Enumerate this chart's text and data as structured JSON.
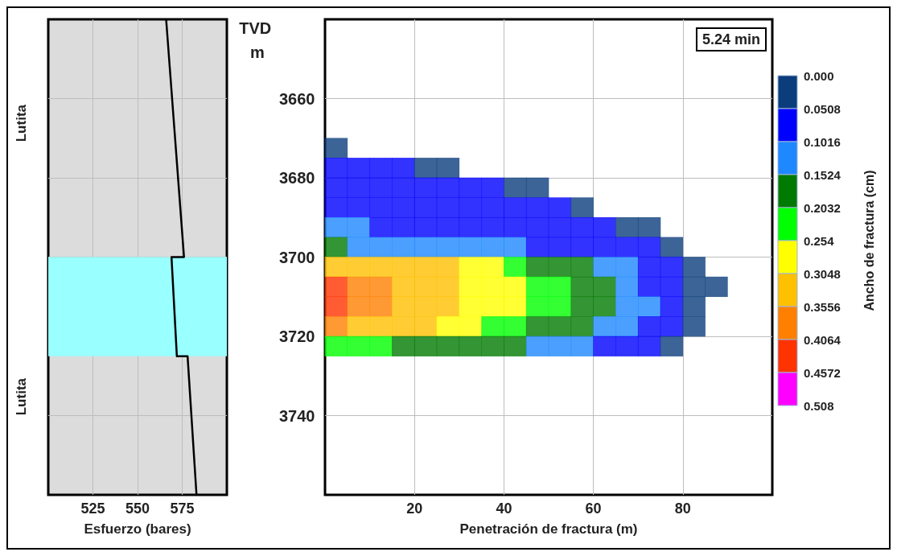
{
  "chart_data": [
    {
      "type": "line",
      "xlabel": "Esfuerzo (bares)",
      "annotations": [
        "Lutita",
        "Lutita"
      ],
      "xlim": [
        500,
        600
      ],
      "xticks": [
        525,
        550,
        575
      ],
      "ylim": [
        3760,
        3640
      ],
      "yticks": [
        3660,
        3680,
        3700,
        3720,
        3740
      ],
      "tick_labels": "x",
      "grid": true,
      "series": [
        {
          "color": "#000000",
          "x": [
            566,
            576,
            569,
            572,
            578,
            583
          ],
          "values": [
            3640,
            3700,
            3700,
            3725,
            3725,
            3760
          ]
        }
      ],
      "bands": [
        {
          "axis": "y",
          "from": 3700,
          "to": 3725,
          "color": "#99ffff"
        }
      ]
    },
    {
      "type": "scatter",
      "marker": "square",
      "xlabel": "Penetración de fractura (m)",
      "ylabel": "TVD m",
      "clabel": "Ancho de fractura (cm)",
      "annotations": [
        "5.24 min"
      ],
      "xlim": [
        0,
        100
      ],
      "xticks": [
        20,
        40,
        60,
        80
      ],
      "ylim": [
        3760,
        3640
      ],
      "yticks": [
        3660,
        3680,
        3700,
        3720,
        3740
      ],
      "grid": true,
      "clim": [
        0,
        0.508
      ],
      "cticks": [
        {
          "value": 0,
          "label": "0.000"
        },
        0.0508,
        0.1016,
        0.1524,
        0.2032,
        0.254,
        0.3048,
        0.3556,
        0.4064,
        0.4572,
        0.508
      ],
      "colors": [
        "#0b3d7c",
        "#0000ff",
        "#1e88ff",
        "#007a00",
        "#00ff00",
        "#ffff00",
        "#ffc000",
        "#ff8000",
        "#ff3300",
        "#ff00ff"
      ],
      "series": [
        {
          "x": [
            2.5,
            2.5,
            7.5,
            12.5,
            17.5,
            22.5,
            27.5,
            2.5,
            7.5,
            12.5,
            17.5,
            22.5,
            27.5,
            32.5,
            37.5,
            42.5,
            47.5,
            2.5,
            7.5,
            12.5,
            17.5,
            22.5,
            27.5,
            32.5,
            37.5,
            42.5,
            47.5,
            52.5,
            57.5,
            2.5,
            7.5,
            12.5,
            17.5,
            22.5,
            27.5,
            32.5,
            37.5,
            42.5,
            47.5,
            52.5,
            57.5,
            62.5,
            67.5,
            72.5,
            2.5,
            7.5,
            12.5,
            17.5,
            22.5,
            27.5,
            32.5,
            37.5,
            42.5,
            47.5,
            52.5,
            57.5,
            62.5,
            67.5,
            72.5,
            77.5,
            2.5,
            7.5,
            12.5,
            17.5,
            22.5,
            27.5,
            32.5,
            37.5,
            42.5,
            47.5,
            52.5,
            57.5,
            62.5,
            67.5,
            72.5,
            77.5,
            82.5,
            2.5,
            7.5,
            12.5,
            17.5,
            22.5,
            27.5,
            32.5,
            37.5,
            42.5,
            47.5,
            52.5,
            57.5,
            62.5,
            67.5,
            72.5,
            77.5,
            82.5,
            87.5,
            2.5,
            7.5,
            12.5,
            17.5,
            22.5,
            27.5,
            32.5,
            37.5,
            42.5,
            47.5,
            52.5,
            57.5,
            62.5,
            67.5,
            72.5,
            77.5,
            82.5,
            2.5,
            7.5,
            12.5,
            17.5,
            22.5,
            27.5,
            32.5,
            37.5,
            42.5,
            47.5,
            52.5,
            57.5,
            62.5,
            67.5,
            72.5,
            77.5,
            82.5,
            2.5,
            7.5,
            12.5,
            17.5,
            22.5,
            27.5,
            32.5,
            37.5,
            42.5,
            47.5,
            52.5,
            57.5,
            62.5,
            67.5,
            72.5,
            77.5
          ],
          "values": [
            3672.5,
            3677.5,
            3677.5,
            3677.5,
            3677.5,
            3677.5,
            3677.5,
            3682.5,
            3682.5,
            3682.5,
            3682.5,
            3682.5,
            3682.5,
            3682.5,
            3682.5,
            3682.5,
            3682.5,
            3687.5,
            3687.5,
            3687.5,
            3687.5,
            3687.5,
            3687.5,
            3687.5,
            3687.5,
            3687.5,
            3687.5,
            3687.5,
            3687.5,
            3692.5,
            3692.5,
            3692.5,
            3692.5,
            3692.5,
            3692.5,
            3692.5,
            3692.5,
            3692.5,
            3692.5,
            3692.5,
            3692.5,
            3692.5,
            3692.5,
            3692.5,
            3697.5,
            3697.5,
            3697.5,
            3697.5,
            3697.5,
            3697.5,
            3697.5,
            3697.5,
            3697.5,
            3697.5,
            3697.5,
            3697.5,
            3697.5,
            3697.5,
            3697.5,
            3697.5,
            3702.5,
            3702.5,
            3702.5,
            3702.5,
            3702.5,
            3702.5,
            3702.5,
            3702.5,
            3702.5,
            3702.5,
            3702.5,
            3702.5,
            3702.5,
            3702.5,
            3702.5,
            3702.5,
            3702.5,
            3707.5,
            3707.5,
            3707.5,
            3707.5,
            3707.5,
            3707.5,
            3707.5,
            3707.5,
            3707.5,
            3707.5,
            3707.5,
            3707.5,
            3707.5,
            3707.5,
            3707.5,
            3707.5,
            3707.5,
            3707.5,
            3712.5,
            3712.5,
            3712.5,
            3712.5,
            3712.5,
            3712.5,
            3712.5,
            3712.5,
            3712.5,
            3712.5,
            3712.5,
            3712.5,
            3712.5,
            3712.5,
            3712.5,
            3712.5,
            3712.5,
            3717.5,
            3717.5,
            3717.5,
            3717.5,
            3717.5,
            3717.5,
            3717.5,
            3717.5,
            3717.5,
            3717.5,
            3717.5,
            3717.5,
            3717.5,
            3717.5,
            3717.5,
            3717.5,
            3717.5,
            3722.5,
            3722.5,
            3722.5,
            3722.5,
            3722.5,
            3722.5,
            3722.5,
            3722.5,
            3722.5,
            3722.5,
            3722.5,
            3722.5,
            3722.5,
            3722.5,
            3722.5,
            3722.5
          ],
          "cvalues": [
            0.0254,
            0.0762,
            0.0762,
            0.0762,
            0.0762,
            0.0254,
            0.0254,
            0.0762,
            0.0762,
            0.0762,
            0.0762,
            0.0762,
            0.0762,
            0.0762,
            0.0762,
            0.0254,
            0.0254,
            0.0762,
            0.0762,
            0.0762,
            0.0762,
            0.0762,
            0.0762,
            0.0762,
            0.0762,
            0.0762,
            0.0762,
            0.0762,
            0.0254,
            0.127,
            0.127,
            0.0762,
            0.0762,
            0.0762,
            0.0762,
            0.0762,
            0.0762,
            0.0762,
            0.0762,
            0.0762,
            0.0762,
            0.0762,
            0.0254,
            0.0254,
            0.1778,
            0.127,
            0.127,
            0.127,
            0.127,
            0.127,
            0.127,
            0.127,
            0.127,
            0.0762,
            0.0762,
            0.0762,
            0.0762,
            0.0762,
            0.0762,
            0.0254,
            0.3302,
            0.3302,
            0.3302,
            0.3302,
            0.3302,
            0.3302,
            0.2794,
            0.2794,
            0.2286,
            0.1778,
            0.1778,
            0.1778,
            0.127,
            0.127,
            0.0762,
            0.0762,
            0.0254,
            0.4318,
            0.381,
            0.381,
            0.3302,
            0.3302,
            0.3302,
            0.2794,
            0.2794,
            0.2794,
            0.2286,
            0.2286,
            0.1778,
            0.1778,
            0.127,
            0.0762,
            0.0762,
            0.0254,
            0.0254,
            0.4318,
            0.381,
            0.381,
            0.3302,
            0.3302,
            0.3302,
            0.2794,
            0.2794,
            0.2794,
            0.2286,
            0.2286,
            0.1778,
            0.1778,
            0.127,
            0.127,
            0.0762,
            0.0254,
            0.381,
            0.3302,
            0.3302,
            0.3302,
            0.3302,
            0.2794,
            0.2794,
            0.2286,
            0.2286,
            0.1778,
            0.1778,
            0.1778,
            0.127,
            0.127,
            0.0762,
            0.0762,
            0.0254,
            0.2286,
            0.2286,
            0.2286,
            0.1778,
            0.1778,
            0.1778,
            0.1778,
            0.1778,
            0.1778,
            0.127,
            0.127,
            0.127,
            0.0762,
            0.0762,
            0.0762,
            0.0254
          ]
        }
      ]
    }
  ]
}
